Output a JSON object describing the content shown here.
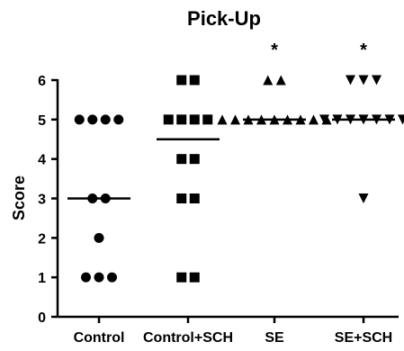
{
  "chart_data": {
    "type": "scatter",
    "title": "Pick-Up",
    "xlabel": "",
    "ylabel": "Score",
    "ylim": [
      0,
      6
    ],
    "yticks": [
      0,
      1,
      2,
      3,
      4,
      5,
      6
    ],
    "categories": [
      "Control",
      "Control+SCH",
      "SE",
      "SE+SCH"
    ],
    "series": [
      {
        "category": "Control",
        "marker": "circle",
        "values": [
          5,
          5,
          5,
          5,
          3,
          3,
          2,
          1,
          1,
          1
        ],
        "median": 3,
        "annotation": ""
      },
      {
        "category": "Control+SCH",
        "marker": "square",
        "values": [
          6,
          6,
          5,
          5,
          5,
          5,
          4,
          4,
          3,
          3,
          1,
          1
        ],
        "median": 4.5,
        "annotation": ""
      },
      {
        "category": "SE",
        "marker": "triangle-up",
        "values": [
          6,
          6,
          5,
          5,
          5,
          5,
          5,
          5,
          5,
          5,
          5
        ],
        "median": 5,
        "annotation": "*"
      },
      {
        "category": "SE+SCH",
        "marker": "triangle-down",
        "values": [
          6,
          6,
          6,
          5,
          5,
          5,
          5,
          5,
          5,
          5,
          3
        ],
        "median": 5,
        "annotation": "*"
      }
    ],
    "grid": false,
    "legend": "none",
    "marker_color": "#000000"
  }
}
